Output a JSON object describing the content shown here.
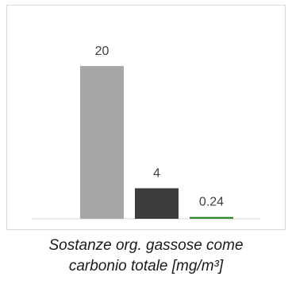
{
  "chart_data": {
    "type": "bar",
    "categories": [
      "",
      "",
      ""
    ],
    "values": [
      20,
      4,
      0.24
    ],
    "data_labels": [
      "20",
      "4",
      "0.24"
    ],
    "colors": [
      "#a6a6a6",
      "#3d3d3d",
      "#2e8b2e"
    ],
    "ylim": [
      0,
      20
    ],
    "grid": false,
    "legend": "none"
  },
  "caption": {
    "line1": "Sostanze org. gassose come",
    "line2": "carbonio totale [mg/m³]"
  }
}
